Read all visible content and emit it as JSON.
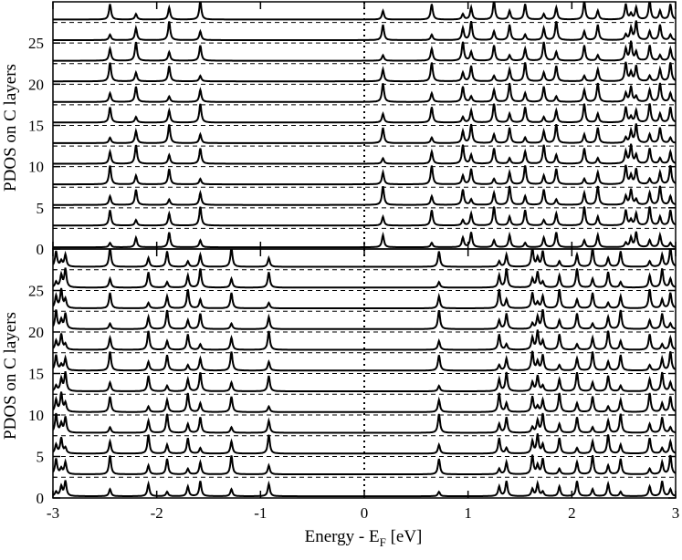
{
  "chart_data": [
    {
      "type": "line",
      "panel": "top",
      "ylabel": "PDOS on C layers",
      "xlim": [
        -3,
        3
      ],
      "ylim": [
        0,
        30
      ],
      "yticks": [
        0,
        5,
        10,
        15,
        20,
        25
      ],
      "fermi_level": 0,
      "layer_count": 12,
      "layer_offset": 2.5,
      "series_color": "#000000",
      "peaks": [
        -2.45,
        -2.2,
        -1.88,
        -1.58,
        0.18,
        0.65,
        0.95,
        1.03,
        1.25,
        1.4,
        1.55,
        1.73,
        1.85,
        2.12,
        2.25,
        2.52,
        2.57,
        2.62,
        2.75,
        2.85,
        2.95
      ]
    },
    {
      "type": "line",
      "panel": "bottom",
      "ylabel": "PDOS on C layers",
      "xlabel": "Energy - E",
      "xlabel_subscript": "F",
      "xlabel_unit": " [eV]",
      "xlim": [
        -3,
        3
      ],
      "ylim": [
        0,
        30
      ],
      "xticks": [
        -3,
        -2,
        -1,
        0,
        1,
        2,
        3
      ],
      "yticks": [
        0,
        5,
        10,
        15,
        20,
        25
      ],
      "fermi_level": 0,
      "layer_count": 12,
      "layer_offset": 2.5,
      "series_color": "#000000",
      "peaks": [
        -2.97,
        -2.92,
        -2.88,
        -2.45,
        -2.08,
        -1.9,
        -1.7,
        -1.58,
        -1.28,
        -0.92,
        0.72,
        1.3,
        1.37,
        1.62,
        1.67,
        1.72,
        1.88,
        2.05,
        2.2,
        2.35,
        2.47,
        2.75,
        2.87,
        2.95
      ]
    }
  ]
}
